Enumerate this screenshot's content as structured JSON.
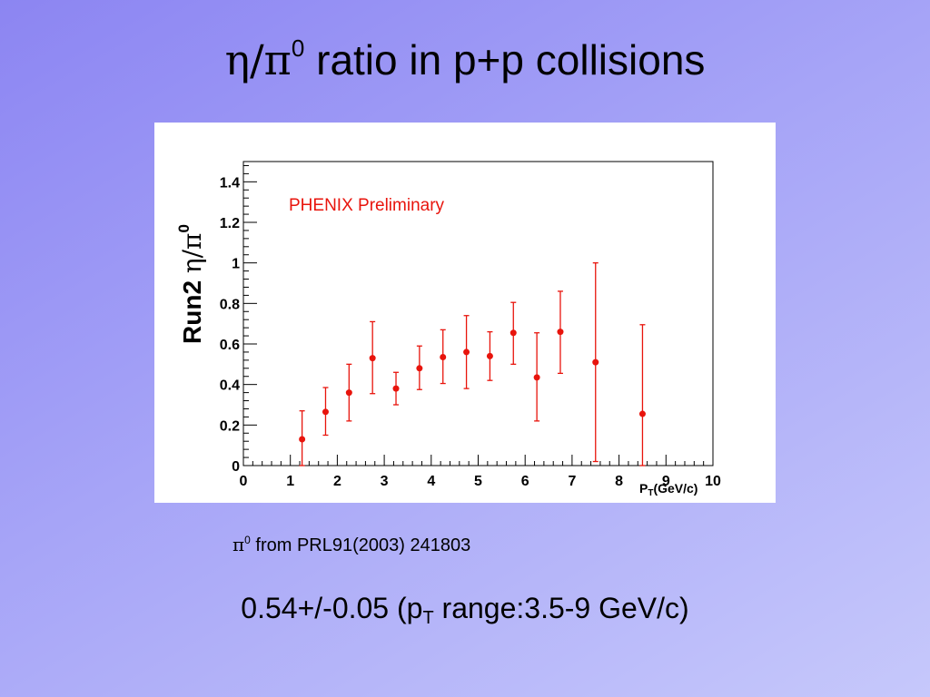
{
  "slide": {
    "title_symbol": "η/π",
    "title_sup": "0",
    "title_text": " ratio in p+p collisions",
    "source_symbol": "π",
    "source_sup": "0",
    "source_text": " from  PRL91(2003) 241803",
    "result_prefix": "0.54+/-0.05 (p",
    "result_sub": "T",
    "result_suffix": " range:3.5-9 GeV/c)"
  },
  "colors": {
    "data": "#e8140c",
    "annotation": "#e8140c",
    "axis": "#000000",
    "panel": "#ffffff"
  },
  "chart_data": {
    "type": "scatter",
    "title": "",
    "annotation": "PHENIX Preliminary",
    "ylabel_prefix": "Run2 ",
    "ylabel_symbol": "η/π",
    "ylabel_sup": "0",
    "xlabel_main": "P",
    "xlabel_sub": "T",
    "xlabel_rest": "(GeV/c)",
    "xlim": [
      0,
      10
    ],
    "ylim": [
      0,
      1.5
    ],
    "x_ticks": [
      "0",
      "1",
      "2",
      "3",
      "4",
      "5",
      "6",
      "7",
      "8",
      "9",
      "10"
    ],
    "y_ticks": [
      "0",
      "0.2",
      "0.4",
      "0.6",
      "0.8",
      "1",
      "1.2",
      "1.4"
    ],
    "grid": false,
    "series": [
      {
        "points": [
          {
            "x": 1.25,
            "y": 0.13,
            "lo": 0.0,
            "hi": 0.27
          },
          {
            "x": 1.75,
            "y": 0.265,
            "lo": 0.15,
            "hi": 0.385
          },
          {
            "x": 2.25,
            "y": 0.36,
            "lo": 0.22,
            "hi": 0.5
          },
          {
            "x": 2.75,
            "y": 0.53,
            "lo": 0.355,
            "hi": 0.71
          },
          {
            "x": 3.25,
            "y": 0.38,
            "lo": 0.3,
            "hi": 0.46
          },
          {
            "x": 3.75,
            "y": 0.48,
            "lo": 0.375,
            "hi": 0.59
          },
          {
            "x": 4.25,
            "y": 0.535,
            "lo": 0.405,
            "hi": 0.67
          },
          {
            "x": 4.75,
            "y": 0.56,
            "lo": 0.38,
            "hi": 0.74
          },
          {
            "x": 5.25,
            "y": 0.54,
            "lo": 0.42,
            "hi": 0.66
          },
          {
            "x": 5.75,
            "y": 0.655,
            "lo": 0.5,
            "hi": 0.805
          },
          {
            "x": 6.25,
            "y": 0.435,
            "lo": 0.22,
            "hi": 0.655
          },
          {
            "x": 6.75,
            "y": 0.66,
            "lo": 0.455,
            "hi": 0.86
          },
          {
            "x": 7.5,
            "y": 0.51,
            "lo": 0.02,
            "hi": 1.0
          },
          {
            "x": 8.5,
            "y": 0.255,
            "lo": 0.0,
            "hi": 0.695
          }
        ]
      }
    ]
  }
}
